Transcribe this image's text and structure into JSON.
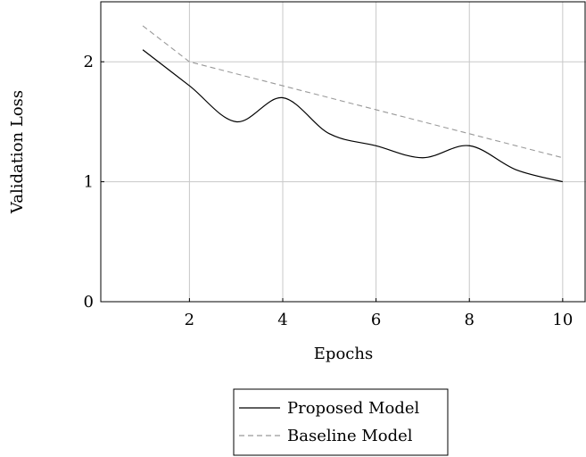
{
  "chart_data": {
    "type": "line",
    "xlabel": "Epochs",
    "ylabel": "Validation Loss",
    "xlim": [
      0.1,
      10.5
    ],
    "ylim": [
      0,
      2.5
    ],
    "x_ticks": [
      2,
      4,
      6,
      8,
      10
    ],
    "y_ticks": [
      0,
      1,
      2
    ],
    "grid": true,
    "legend_position": "bottom-center",
    "series": [
      {
        "name": "Proposed Model",
        "style": "solid",
        "color": "#000000",
        "x": [
          1,
          2,
          3,
          4,
          5,
          6,
          7,
          8,
          9,
          10
        ],
        "values": [
          2.1,
          1.8,
          1.5,
          1.7,
          1.4,
          1.3,
          1.2,
          1.3,
          1.1,
          1.0
        ]
      },
      {
        "name": "Baseline Model",
        "style": "dashed",
        "color": "#999999",
        "x": [
          1,
          2,
          3,
          4,
          5,
          6,
          7,
          8,
          9,
          10
        ],
        "values": [
          2.3,
          2.0,
          1.9,
          1.8,
          1.7,
          1.6,
          1.5,
          1.4,
          1.3,
          1.2
        ]
      }
    ]
  }
}
